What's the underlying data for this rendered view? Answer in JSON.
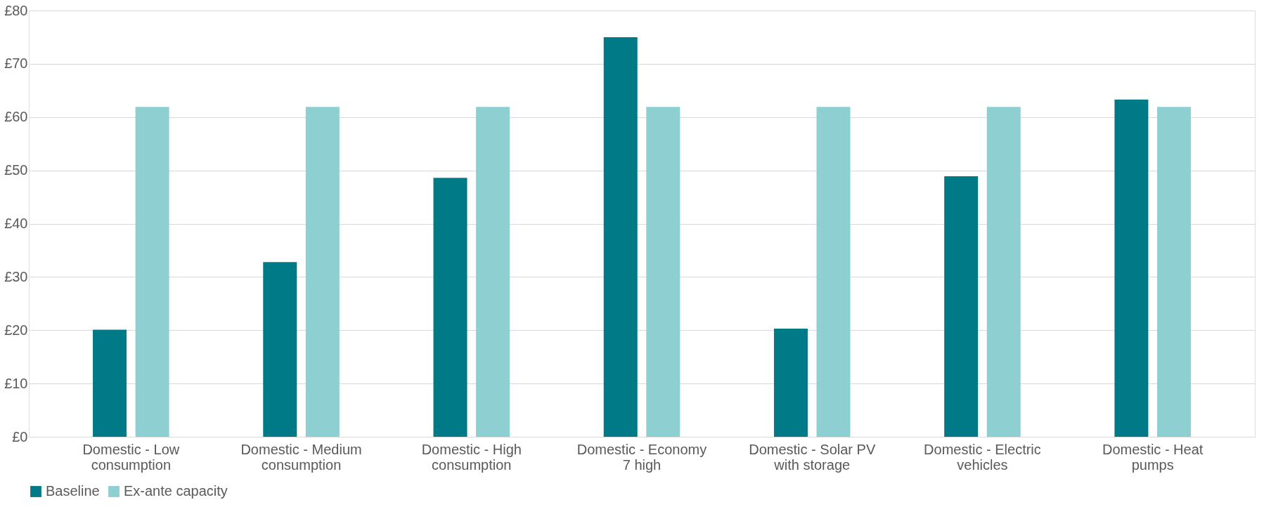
{
  "chart_data": {
    "type": "bar",
    "categories": [
      "Domestic - Low consumption",
      "Domestic - Medium consumption",
      "Domestic - High consumption",
      "Domestic - Economy 7 high",
      "Domestic - Solar PV with storage",
      "Domestic - Electric vehicles",
      "Domestic - Heat pumps"
    ],
    "series": [
      {
        "name": "Baseline",
        "color": "#007a87",
        "values": [
          20.1,
          32.8,
          48.6,
          75.0,
          20.3,
          48.9,
          63.3
        ]
      },
      {
        "name": "Ex-ante capacity",
        "color": "#8ecfd1",
        "values": [
          61.9,
          61.9,
          61.9,
          61.9,
          61.9,
          61.9,
          61.9
        ]
      }
    ],
    "ylim": [
      0,
      80
    ],
    "yticks": [
      {
        "value": 0,
        "label": "£0"
      },
      {
        "value": 10,
        "label": "£10"
      },
      {
        "value": 20,
        "label": "£20"
      },
      {
        "value": 30,
        "label": "£30"
      },
      {
        "value": 40,
        "label": "£40"
      },
      {
        "value": 50,
        "label": "£50"
      },
      {
        "value": 60,
        "label": "£60"
      },
      {
        "value": 70,
        "label": "£70"
      },
      {
        "value": 80,
        "label": "£80"
      }
    ],
    "grid": "y",
    "legend": "bottom"
  }
}
